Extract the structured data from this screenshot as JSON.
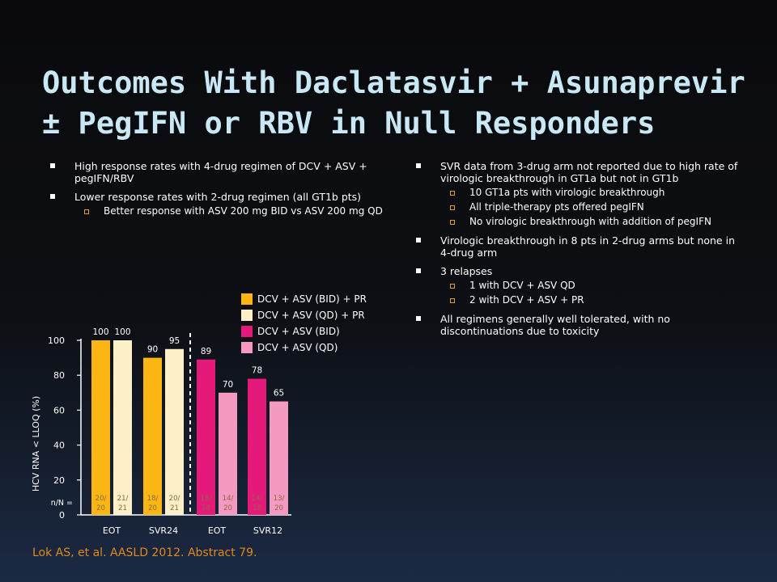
{
  "title": "Outcomes With Daclatasvir + Asunaprevir ± PegIFN or RBV in Null Responders",
  "left_bullets": [
    {
      "text": "High response rates with 4-drug regimen of DCV + ASV + pegIFN/RBV",
      "subs": []
    },
    {
      "text": "Lower response rates with 2-drug regimen (all GT1b pts)",
      "subs": [
        "Better response with ASV 200 mg BID vs ASV 200 mg QD"
      ]
    }
  ],
  "right_bullets": [
    {
      "text": "SVR data from 3-drug arm not reported due to high rate of virologic breakthrough in GT1a but not in GT1b",
      "subs": [
        "10 GT1a pts with virologic breakthrough",
        "All triple-therapy pts offered pegIFN",
        "No virologic breakthrough with addition of pegIFN"
      ]
    },
    {
      "text": "Virologic breakthrough in 8 pts in 2-drug arms but none in 4-drug arm",
      "subs": []
    },
    {
      "text": "3 relapses",
      "subs": [
        "1 with DCV + ASV QD",
        "2 with DCV + ASV + PR"
      ]
    },
    {
      "text": "All regimens generally well tolerated, with no discontinuations due to toxicity",
      "subs": []
    }
  ],
  "citation": "Lok AS, et al. AASLD 2012. Abstract 79.",
  "colors": {
    "bid_pr": "#fbb614",
    "qd_pr": "#fdf0c8",
    "bid": "#e5197a",
    "qd": "#f49ac0",
    "title": "#c9e8f6",
    "citation": "#e08a1e",
    "bullet_sub": "#e89a2a"
  },
  "chart_data": {
    "type": "bar",
    "ylabel": "HCV RNA < LLOQ (%)",
    "ylim": [
      0,
      100
    ],
    "yticks": [
      "0",
      "20",
      "40",
      "60",
      "80",
      "100"
    ],
    "n_label": "n/N =",
    "groups": [
      {
        "label": "EOT",
        "bars": [
          {
            "series": "DCV + ASV (BID) + PR",
            "value": 100,
            "label": "100",
            "n": [
              "20/",
              "20"
            ]
          },
          {
            "series": "DCV + ASV (QD) + PR",
            "value": 100,
            "label": "100",
            "n": [
              "21/",
              "21"
            ]
          }
        ]
      },
      {
        "label": "SVR24",
        "bars": [
          {
            "series": "DCV + ASV (BID) + PR",
            "value": 90,
            "label": "90",
            "n": [
              "18/",
              "20"
            ]
          },
          {
            "series": "DCV + ASV (QD) + PR",
            "value": 95,
            "label": "95",
            "n": [
              "20/",
              "21"
            ]
          }
        ]
      },
      {
        "label": "EOT",
        "bars": [
          {
            "series": "DCV + ASV (BID)",
            "value": 89,
            "label": "89",
            "n": [
              "16/",
              "18"
            ]
          },
          {
            "series": "DCV + ASV (QD)",
            "value": 70,
            "label": "70",
            "n": [
              "14/",
              "20"
            ]
          }
        ]
      },
      {
        "label": "SVR12",
        "bars": [
          {
            "series": "DCV + ASV (BID)",
            "value": 78,
            "label": "78",
            "n": [
              "14/",
              "18"
            ]
          },
          {
            "series": "DCV + ASV (QD)",
            "value": 65,
            "label": "65",
            "n": [
              "13/",
              "20"
            ]
          }
        ]
      }
    ],
    "legend": [
      {
        "name": "DCV + ASV (BID) + PR",
        "color": "#fbb614"
      },
      {
        "name": "DCV + ASV (QD) + PR",
        "color": "#fdf0c8"
      },
      {
        "name": "DCV + ASV (BID)",
        "color": "#e5197a"
      },
      {
        "name": "DCV + ASV (QD)",
        "color": "#f49ac0"
      }
    ],
    "legend_position": "top-right"
  }
}
